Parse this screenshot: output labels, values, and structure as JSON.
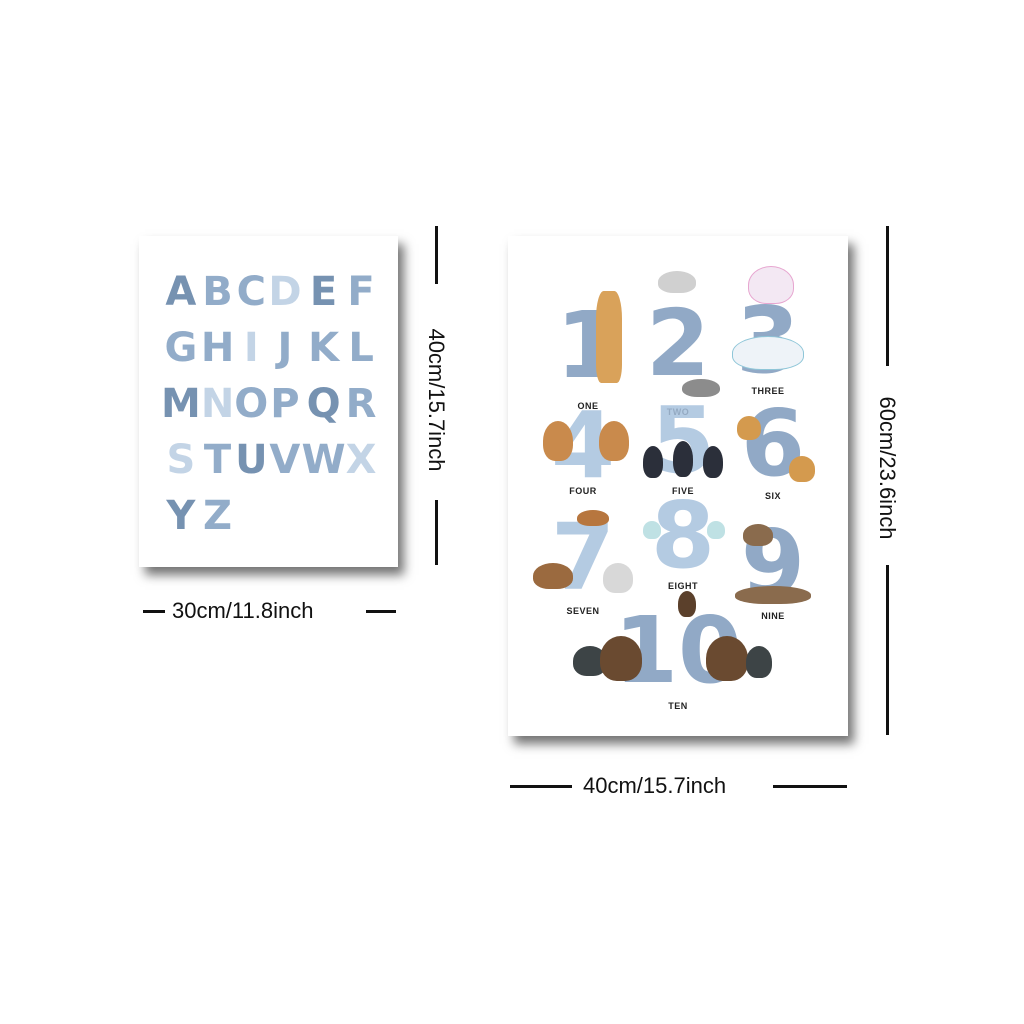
{
  "alphabet": [
    "A",
    "B",
    "C",
    "D",
    "E",
    "F",
    "G",
    "H",
    "I",
    "J",
    "K",
    "L",
    "M",
    "N",
    "O",
    "P",
    "Q",
    "R",
    "S",
    "T",
    "U",
    "V",
    "W",
    "X",
    "Y",
    "Z"
  ],
  "numbers": [
    {
      "digit": "1",
      "word": "ONE"
    },
    {
      "digit": "2",
      "word": "TWO"
    },
    {
      "digit": "3",
      "word": "THREE"
    },
    {
      "digit": "4",
      "word": "FOUR"
    },
    {
      "digit": "5",
      "word": "FIVE"
    },
    {
      "digit": "6",
      "word": "SIX"
    },
    {
      "digit": "7",
      "word": "SEVEN"
    },
    {
      "digit": "8",
      "word": "EIGHT"
    },
    {
      "digit": "9",
      "word": "NINE"
    },
    {
      "digit": "10",
      "word": "TEN"
    }
  ],
  "dimensions": {
    "small_width": "30cm/11.8inch",
    "small_height": "40cm/15.7inch",
    "large_width": "40cm/15.7inch",
    "large_height": "60cm/23.6inch"
  }
}
